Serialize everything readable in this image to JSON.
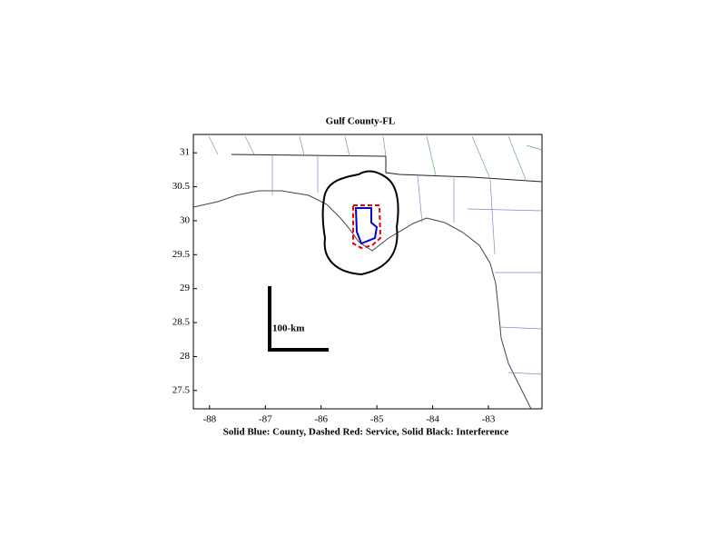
{
  "chart_data": {
    "type": "map",
    "title": "Gulf County-FL",
    "xlabel": "Solid Blue: County, Dashed Red: Service, Solid Black: Interference",
    "scale_label": "100-km",
    "xlim": [
      -88.29,
      -82.04
    ],
    "ylim": [
      27.23,
      31.27
    ],
    "xticks": [
      -88,
      -87,
      -86,
      -85,
      -84,
      -83
    ],
    "yticks": [
      27.5,
      28,
      28.5,
      29,
      29.5,
      30,
      30.5,
      31
    ]
  }
}
